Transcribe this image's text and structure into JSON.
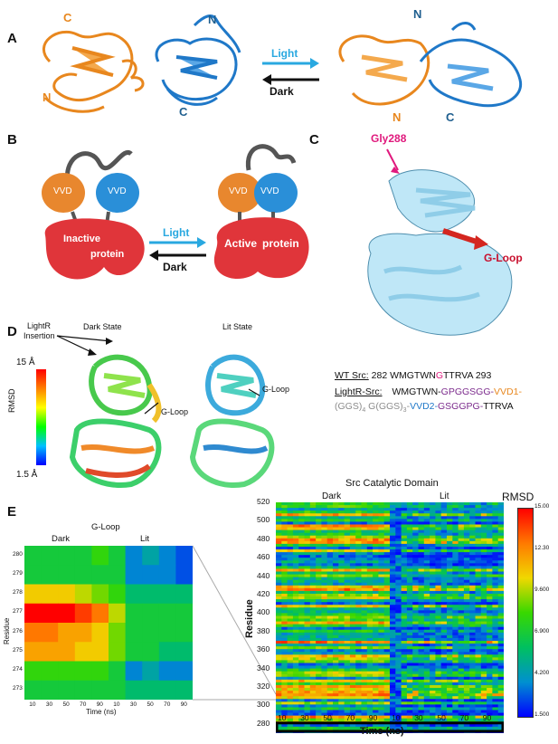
{
  "panels": {
    "A": "A",
    "B": "B",
    "C": "C",
    "D": "D",
    "E": "E"
  },
  "panel_a": {
    "left_c": "C",
    "left_n": "N",
    "mid_n": "N",
    "mid_c": "C",
    "light": "Light",
    "dark": "Dark",
    "right_n_top": "N",
    "right_n_bottom": "N",
    "right_c": "C"
  },
  "panel_b": {
    "vvd": "VVD",
    "inactive_1": "Inactive",
    "inactive_2": "protein",
    "active_1": "Active",
    "active_2": "protein",
    "light": "Light",
    "dark": "Dark"
  },
  "panel_c": {
    "gly": "Gly288",
    "gloop": "G-Loop"
  },
  "panel_d": {
    "insertion_1": "LightR",
    "insertion_2": "Insertion",
    "dark_state": "Dark State",
    "lit_state": "Lit State",
    "scale_top": "15 Å",
    "scale_bottom": "1.5 Å",
    "rmsd": "RMSD",
    "gloop": "G-Loop"
  },
  "sequences": {
    "wt_label": "WT Src:",
    "wt_start": "282",
    "wt_a": "WMGTWN",
    "wt_g": "G",
    "wt_b": "TTRVA",
    "wt_end": "293",
    "lr_label": "LightR-Src:",
    "lr_1": "WMGTWN-",
    "lr_2": "GPGGSGG-",
    "lr_3": "VVD1-",
    "lr_4": "(GGS)",
    "lr_5": "4",
    "lr_6": " G(GGS)",
    "lr_7": "3",
    "lr_8": "-",
    "lr_9": "VVD2-",
    "lr_10": "GSGGPG-",
    "lr_11": "TTRVA",
    "colors": {
      "magenta": "#e0197d",
      "orange": "#e8871e",
      "gray": "#8c8c8c",
      "blue": "#1f78c8",
      "purple": "#7b2a8c"
    }
  },
  "chart_data": [
    {
      "type": "heatmap",
      "title": "G-Loop",
      "ylabel": "Residue",
      "xlabel": "Time (ns)",
      "group_labels": [
        "Dark",
        "Lit"
      ],
      "x_ticks": [
        "10",
        "30",
        "50",
        "70",
        "90",
        "10",
        "30",
        "50",
        "70",
        "90"
      ],
      "y": [
        280,
        279,
        278,
        277,
        276,
        275,
        274,
        273
      ],
      "values": [
        [
          7,
          7,
          7,
          7,
          8,
          7,
          4,
          5,
          4,
          3
        ],
        [
          7,
          7,
          7,
          7,
          7,
          7,
          4,
          4,
          4,
          3
        ],
        [
          11,
          11,
          11,
          10,
          9,
          8,
          6,
          6,
          6,
          6
        ],
        [
          15,
          15,
          15,
          14,
          13,
          10,
          7,
          7,
          7,
          7
        ],
        [
          13,
          13,
          12,
          12,
          11,
          9,
          7,
          7,
          7,
          7
        ],
        [
          12,
          12,
          12,
          11,
          11,
          9,
          7,
          7,
          6,
          6
        ],
        [
          8,
          8,
          8,
          8,
          8,
          7,
          4,
          5,
          4,
          4
        ],
        [
          7,
          7,
          7,
          7,
          7,
          7,
          6,
          6,
          6,
          6
        ]
      ]
    },
    {
      "type": "heatmap",
      "title": "Src Catalytic Domain",
      "ylabel": "Residue",
      "xlabel": "Time (ns)",
      "group_labels": [
        "Dark",
        "Lit"
      ],
      "y_ticks": [
        "520",
        "500",
        "480",
        "460",
        "440",
        "420",
        "400",
        "380",
        "360",
        "340",
        "320",
        "300",
        "280"
      ],
      "x_ticks": [
        "10",
        "30",
        "50",
        "70",
        "90",
        "10",
        "30",
        "50",
        "70",
        "90"
      ],
      "colorbar": {
        "label": "RMSD",
        "ticks": [
          "15.00",
          "12.30",
          "9.600",
          "6.900",
          "4.200",
          "1.500"
        ],
        "min": 1.5,
        "max": 15
      }
    }
  ]
}
